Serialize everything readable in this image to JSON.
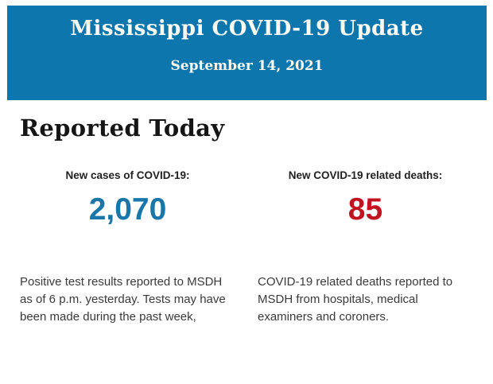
{
  "header": {
    "title": "Mississippi COVID-19 Update",
    "date": "September 14, 2021",
    "background_color": "#0d76ad",
    "text_color": "#fcfaf3"
  },
  "main": {
    "heading": "Reported Today",
    "stats": [
      {
        "label": "New cases of COVID-19:",
        "value": "2,070",
        "value_color": "#1a75a8",
        "description": "Positive test results reported to MSDH as of 6 p.m. yesterday. Tests may have been made during the past week,"
      },
      {
        "label": "New COVID-19 related deaths:",
        "value": "85",
        "value_color": "#c01420",
        "description": "COVID-19 related deaths reported to MSDH from hospitals, medical examiners and coroners."
      }
    ]
  }
}
